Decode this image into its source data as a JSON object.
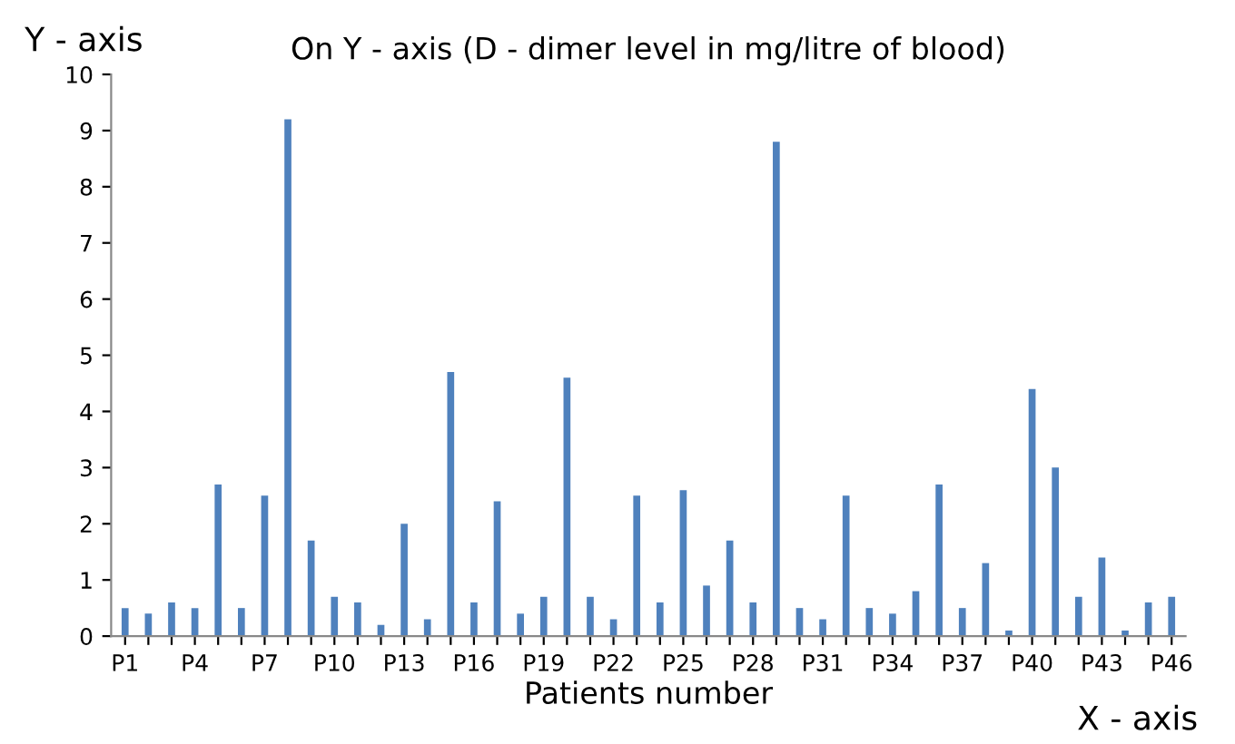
{
  "chart_data": {
    "type": "bar",
    "title": "On Y - axis (D - dimer level in mg/litre of blood)",
    "xlabel": "Patients number",
    "annotations": [
      "Y - axis",
      "X - axis"
    ],
    "categories": [
      "P1",
      null,
      null,
      "P4",
      null,
      null,
      "P7",
      null,
      null,
      "P10",
      null,
      null,
      "P13",
      null,
      null,
      "P16",
      null,
      null,
      "P19",
      null,
      null,
      "P22",
      null,
      null,
      "P25",
      null,
      null,
      "P28",
      null,
      null,
      "P31",
      null,
      null,
      "P34",
      null,
      null,
      "P37",
      null,
      null,
      "P40",
      null,
      null,
      "P43",
      null,
      null,
      "P46"
    ],
    "values": [
      0.5,
      0.4,
      0.6,
      0.5,
      2.7,
      0.5,
      2.5,
      9.2,
      1.7,
      0.7,
      0.6,
      0.2,
      2.0,
      0.3,
      4.7,
      0.6,
      2.4,
      0.4,
      0.7,
      4.6,
      0.7,
      0.3,
      2.5,
      0.6,
      2.6,
      0.9,
      1.7,
      0.6,
      8.8,
      0.5,
      0.3,
      2.5,
      0.5,
      0.4,
      0.8,
      2.7,
      0.5,
      1.3,
      0.1,
      4.4,
      3.0,
      0.7,
      1.4,
      0.1,
      0.6,
      0.7
    ],
    "color": "#4f81bd",
    "ylim": [
      0,
      10
    ],
    "yticks": [
      0,
      1,
      2,
      3,
      4,
      5,
      6,
      7,
      8,
      9,
      10
    ],
    "grid": false,
    "legend": false
  }
}
